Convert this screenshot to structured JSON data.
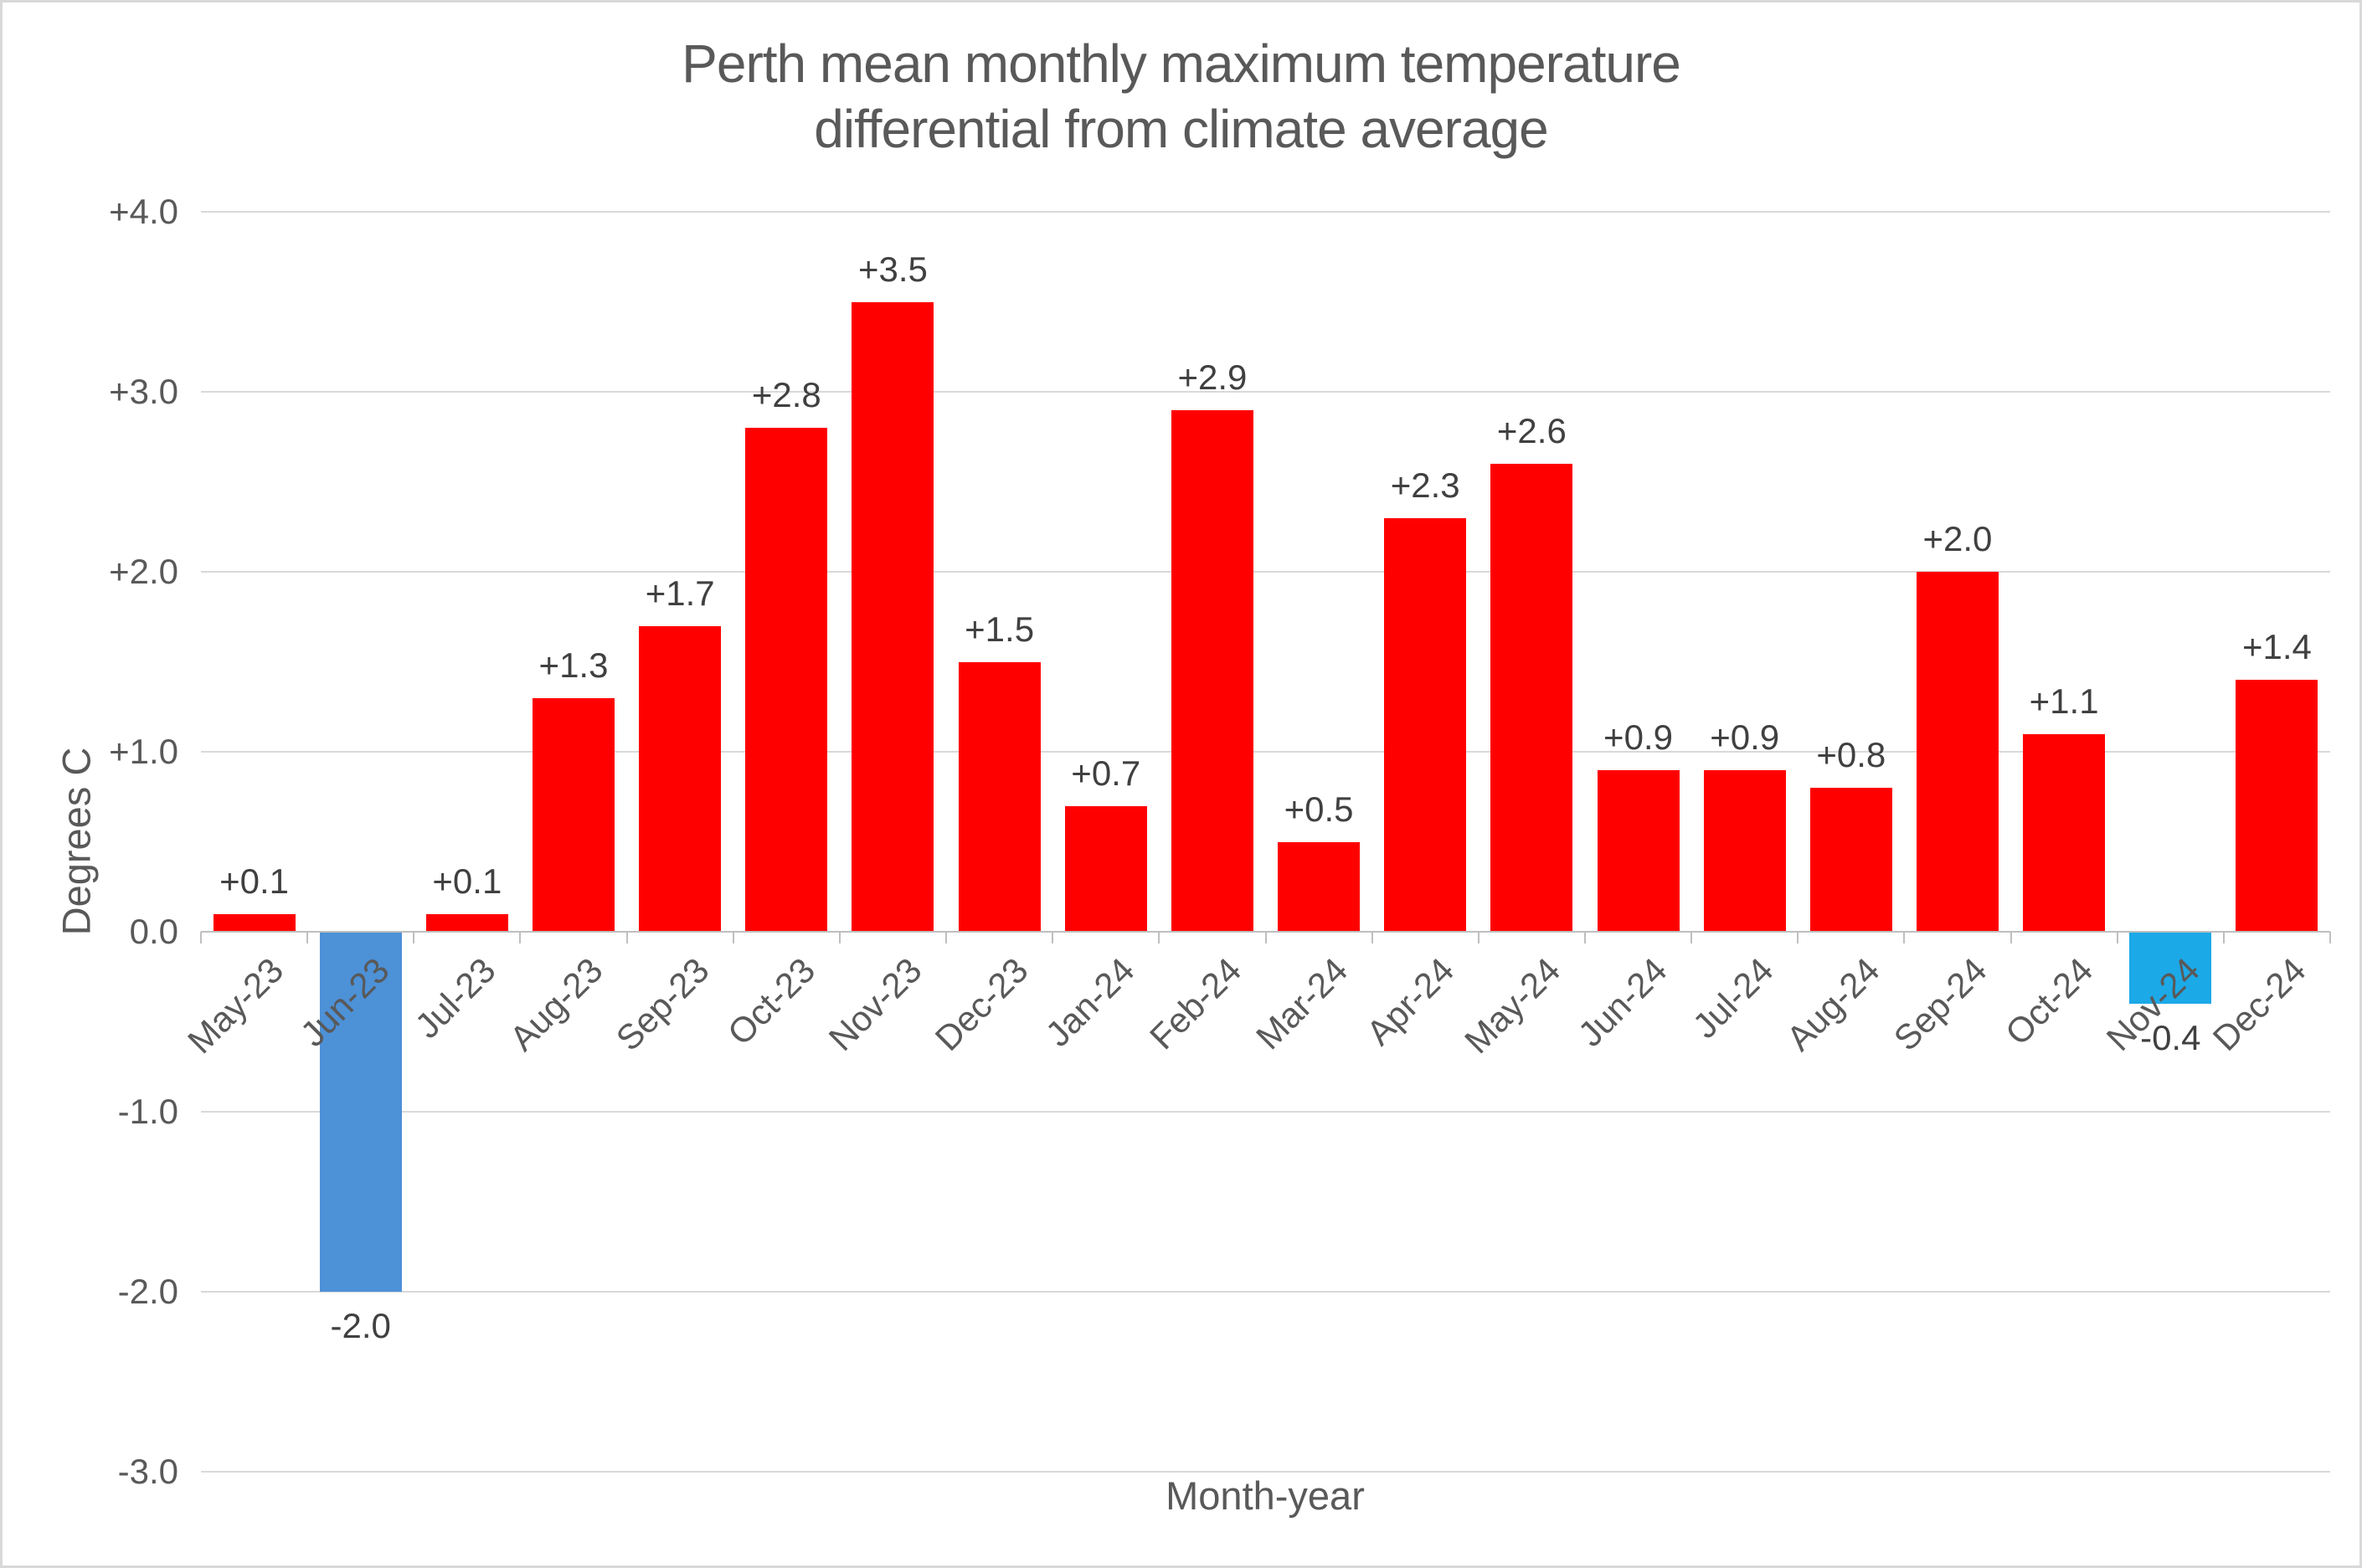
{
  "page": {
    "title_line1": "Perth mean monthly maximum temperature",
    "title_line2": "differential from climate average"
  },
  "chart_data": {
    "type": "bar",
    "title": "Perth mean monthly maximum temperature differential from climate average",
    "xlabel": "Month-year",
    "ylabel": "Degrees C",
    "ylim": [
      -3.0,
      4.0
    ],
    "grid": true,
    "legend": "none",
    "y_ticks": [
      4.0,
      3.0,
      2.0,
      1.0,
      0.0,
      -1.0,
      -2.0,
      -3.0
    ],
    "y_tick_labels": [
      "+4.0",
      "+3.0",
      "+2.0",
      "+1.0",
      "0.0",
      "-1.0",
      "-2.0",
      "-3.0"
    ],
    "categories": [
      "May-23",
      "Jun-23",
      "Jul-23",
      "Aug-23",
      "Sep-23",
      "Oct-23",
      "Nov-23",
      "Dec-23",
      "Jan-24",
      "Feb-24",
      "Mar-24",
      "Apr-24",
      "May-24",
      "Jun-24",
      "Jul-24",
      "Aug-24",
      "Sep-24",
      "Oct-24",
      "Nov-24",
      "Dec-24"
    ],
    "values": [
      0.1,
      -2.0,
      0.1,
      1.3,
      1.7,
      2.8,
      3.5,
      1.5,
      0.7,
      2.9,
      0.5,
      2.3,
      2.6,
      0.9,
      0.9,
      0.8,
      2.0,
      1.1,
      -0.4,
      1.4
    ],
    "bar_labels": [
      "+0.1",
      "-2.0",
      "+0.1",
      "+1.3",
      "+1.7",
      "+2.8",
      "+3.5",
      "+1.5",
      "+0.7",
      "+2.9",
      "+0.5",
      "+2.3",
      "+2.6",
      "+0.9",
      "+0.9",
      "+0.8",
      "+2.0",
      "+1.1",
      "-0.4",
      "+1.4"
    ],
    "bar_colors": [
      "#FF0000",
      "#4D91D7",
      "#FF0000",
      "#FF0000",
      "#FF0000",
      "#FF0000",
      "#FF0000",
      "#FF0000",
      "#FF0000",
      "#FF0000",
      "#FF0000",
      "#FF0000",
      "#FF0000",
      "#FF0000",
      "#FF0000",
      "#FF0000",
      "#FF0000",
      "#FF0000",
      "#1CA9E8",
      "#FF0000"
    ],
    "colors": {
      "positive_bar": "#FF0000",
      "negative_bar_jun23": "#4D91D7",
      "negative_bar_nov24": "#1CA9E8",
      "gridline": "#D9D9D9",
      "axis_line": "#BFBFBF",
      "text": "#595959",
      "data_label_text": "#404040"
    }
  }
}
